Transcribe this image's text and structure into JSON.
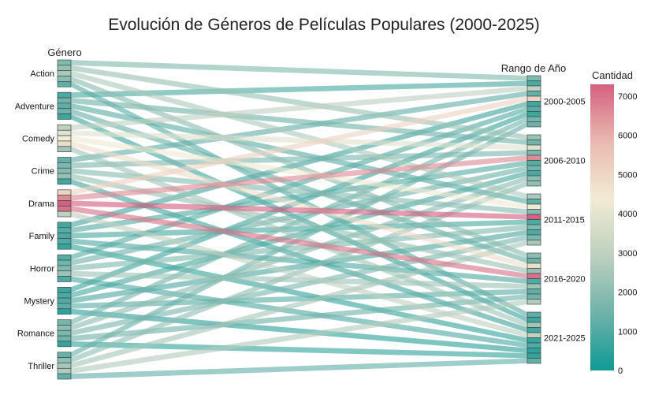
{
  "chart_data": {
    "type": "parallel-categories",
    "title": "Evolución de Géneros de Películas Populares (2000-2025)",
    "dimensions": [
      {
        "label": "Género",
        "categories": [
          "Action",
          "Adventure",
          "Comedy",
          "Crime",
          "Drama",
          "Family",
          "Horror",
          "Mystery",
          "Romance",
          "Thriller"
        ]
      },
      {
        "label": "Rango de Año",
        "categories": [
          "2000-2005",
          "2006-2010",
          "2011-2015",
          "2016-2020",
          "2021-2025"
        ]
      }
    ],
    "colorbar": {
      "title": "Cantidad",
      "range": [
        0,
        7300
      ],
      "ticks": [
        0,
        1000,
        2000,
        3000,
        4000,
        5000,
        6000,
        7000
      ],
      "colors": [
        "#0e9a94",
        "#6fb2aa",
        "#bdd0c0",
        "#f2ebd3",
        "#e9b9b0",
        "#d5607f"
      ]
    },
    "flows": [
      {
        "genre": "Action",
        "range": "2000-2005",
        "count": 1800
      },
      {
        "genre": "Action",
        "range": "2006-2010",
        "count": 2200
      },
      {
        "genre": "Action",
        "range": "2011-2015",
        "count": 2600
      },
      {
        "genre": "Action",
        "range": "2016-2020",
        "count": 2000
      },
      {
        "genre": "Action",
        "range": "2021-2025",
        "count": 1200
      },
      {
        "genre": "Adventure",
        "range": "2000-2005",
        "count": 900
      },
      {
        "genre": "Adventure",
        "range": "2006-2010",
        "count": 1500
      },
      {
        "genre": "Adventure",
        "range": "2011-2015",
        "count": 1200
      },
      {
        "genre": "Adventure",
        "range": "2016-2020",
        "count": 1400
      },
      {
        "genre": "Adventure",
        "range": "2021-2025",
        "count": 700
      },
      {
        "genre": "Comedy",
        "range": "2000-2005",
        "count": 3000
      },
      {
        "genre": "Comedy",
        "range": "2006-2010",
        "count": 3900
      },
      {
        "genre": "Comedy",
        "range": "2011-2015",
        "count": 4300
      },
      {
        "genre": "Comedy",
        "range": "2016-2020",
        "count": 4800
      },
      {
        "genre": "Comedy",
        "range": "2021-2025",
        "count": 2400
      },
      {
        "genre": "Crime",
        "range": "2000-2005",
        "count": 1300
      },
      {
        "genre": "Crime",
        "range": "2006-2010",
        "count": 1700
      },
      {
        "genre": "Crime",
        "range": "2011-2015",
        "count": 1900
      },
      {
        "genre": "Crime",
        "range": "2016-2020",
        "count": 2200
      },
      {
        "genre": "Crime",
        "range": "2021-2025",
        "count": 800
      },
      {
        "genre": "Drama",
        "range": "2000-2005",
        "count": 5100
      },
      {
        "genre": "Drama",
        "range": "2006-2010",
        "count": 6600
      },
      {
        "genre": "Drama",
        "range": "2011-2015",
        "count": 7300
      },
      {
        "genre": "Drama",
        "range": "2016-2020",
        "count": 7000
      },
      {
        "genre": "Drama",
        "range": "2021-2025",
        "count": 3000
      },
      {
        "genre": "Family",
        "range": "2000-2005",
        "count": 800
      },
      {
        "genre": "Family",
        "range": "2006-2010",
        "count": 1100
      },
      {
        "genre": "Family",
        "range": "2011-2015",
        "count": 900
      },
      {
        "genre": "Family",
        "range": "2016-2020",
        "count": 1000
      },
      {
        "genre": "Family",
        "range": "2021-2025",
        "count": 600
      },
      {
        "genre": "Horror",
        "range": "2000-2005",
        "count": 1100
      },
      {
        "genre": "Horror",
        "range": "2006-2010",
        "count": 1500
      },
      {
        "genre": "Horror",
        "range": "2011-2015",
        "count": 1800
      },
      {
        "genre": "Horror",
        "range": "2016-2020",
        "count": 2300
      },
      {
        "genre": "Horror",
        "range": "2021-2025",
        "count": 1000
      },
      {
        "genre": "Mystery",
        "range": "2000-2005",
        "count": 700
      },
      {
        "genre": "Mystery",
        "range": "2006-2010",
        "count": 900
      },
      {
        "genre": "Mystery",
        "range": "2011-2015",
        "count": 1000
      },
      {
        "genre": "Mystery",
        "range": "2016-2020",
        "count": 1200
      },
      {
        "genre": "Mystery",
        "range": "2021-2025",
        "count": 500
      },
      {
        "genre": "Romance",
        "range": "2000-2005",
        "count": 1600
      },
      {
        "genre": "Romance",
        "range": "2006-2010",
        "count": 2000
      },
      {
        "genre": "Romance",
        "range": "2011-2015",
        "count": 1700
      },
      {
        "genre": "Romance",
        "range": "2016-2020",
        "count": 1500
      },
      {
        "genre": "Romance",
        "range": "2021-2025",
        "count": 600
      },
      {
        "genre": "Thriller",
        "range": "2000-2005",
        "count": 1400
      },
      {
        "genre": "Thriller",
        "range": "2006-2010",
        "count": 2100
      },
      {
        "genre": "Thriller",
        "range": "2011-2015",
        "count": 2500
      },
      {
        "genre": "Thriller",
        "range": "2016-2020",
        "count": 2700
      },
      {
        "genre": "Thriller",
        "range": "2021-2025",
        "count": 1300
      }
    ]
  }
}
